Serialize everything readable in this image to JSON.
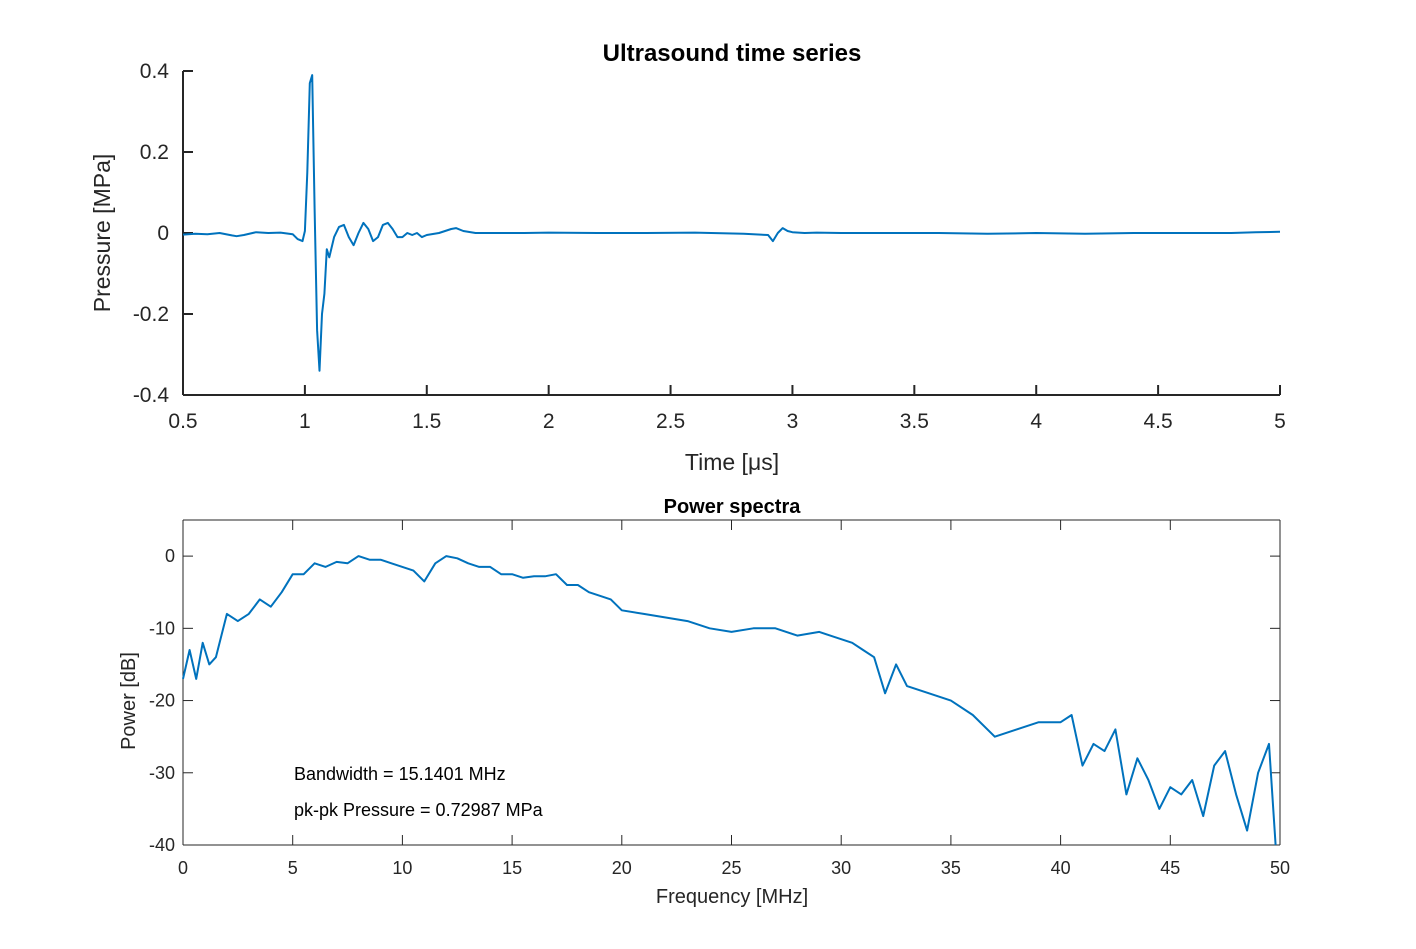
{
  "colors": {
    "line": "#0072BD",
    "axis": "#262626",
    "background": "#ffffff"
  },
  "chart_data": [
    {
      "type": "line",
      "title": "Ultrasound time series",
      "xlabel": "Time [μs]",
      "ylabel": "Pressure [MPa]",
      "xlim": [
        0.5,
        5
      ],
      "ylim": [
        -0.4,
        0.4
      ],
      "xticks": [
        0.5,
        1,
        1.5,
        2,
        2.5,
        3,
        3.5,
        4,
        4.5,
        5
      ],
      "yticks": [
        -0.4,
        -0.2,
        0,
        0.2,
        0.4
      ],
      "box": false,
      "grid": false,
      "series": [
        {
          "x": [
            0.5,
            0.55,
            0.6,
            0.65,
            0.7,
            0.72,
            0.75,
            0.8,
            0.85,
            0.9,
            0.95,
            0.97,
            0.99,
            1.0,
            1.01,
            1.02,
            1.03,
            1.04,
            1.05,
            1.06,
            1.07,
            1.08,
            1.09,
            1.1,
            1.12,
            1.14,
            1.16,
            1.18,
            1.2,
            1.22,
            1.24,
            1.26,
            1.28,
            1.3,
            1.32,
            1.34,
            1.36,
            1.38,
            1.4,
            1.42,
            1.44,
            1.46,
            1.48,
            1.5,
            1.55,
            1.6,
            1.62,
            1.65,
            1.7,
            1.8,
            1.9,
            2.0,
            2.2,
            2.4,
            2.6,
            2.8,
            2.9,
            2.92,
            2.94,
            2.96,
            2.98,
            3.0,
            3.05,
            3.1,
            3.2,
            3.4,
            3.6,
            3.8,
            4.0,
            4.2,
            4.4,
            4.6,
            4.8,
            4.9,
            5.0
          ],
          "y": [
            -0.004,
            -0.002,
            -0.003,
            0.0,
            -0.006,
            -0.008,
            -0.005,
            0.002,
            0.0,
            0.001,
            -0.003,
            -0.015,
            -0.02,
            0.005,
            0.15,
            0.37,
            0.39,
            0.06,
            -0.24,
            -0.34,
            -0.2,
            -0.15,
            -0.04,
            -0.06,
            -0.01,
            0.015,
            0.02,
            -0.01,
            -0.03,
            0.0,
            0.025,
            0.01,
            -0.02,
            -0.01,
            0.02,
            0.025,
            0.01,
            -0.01,
            -0.01,
            0.0,
            -0.005,
            0.0,
            -0.01,
            -0.005,
            0.0,
            0.01,
            0.012,
            0.005,
            0.0,
            0.0,
            0.0,
            0.001,
            0.0,
            0.0,
            0.001,
            -0.002,
            -0.005,
            -0.02,
            0.0,
            0.012,
            0.005,
            0.002,
            0.0,
            0.001,
            0.0,
            0.0,
            0.0,
            -0.002,
            0.0,
            -0.002,
            0.0,
            0.0,
            0.0,
            0.002,
            0.003
          ]
        }
      ]
    },
    {
      "type": "line",
      "title": "Power spectra",
      "xlabel": "Frequency [MHz]",
      "ylabel": "Power [dB]",
      "xlim": [
        0,
        50
      ],
      "ylim": [
        -40,
        5
      ],
      "xticks": [
        0,
        5,
        10,
        15,
        20,
        25,
        30,
        35,
        40,
        45,
        50
      ],
      "yticks": [
        -40,
        -30,
        -20,
        -10,
        0
      ],
      "box": true,
      "grid": false,
      "annotations": [
        "Bandwidth = 15.1401 MHz",
        "pk-pk Pressure = 0.72987 MPa"
      ],
      "series": [
        {
          "x": [
            0,
            0.3,
            0.6,
            0.9,
            1.2,
            1.5,
            2,
            2.5,
            3,
            3.5,
            4,
            4.5,
            5,
            5.5,
            6,
            6.5,
            7,
            7.5,
            8,
            8.5,
            9,
            9.5,
            10,
            10.5,
            11,
            11.5,
            12,
            12.5,
            13,
            13.5,
            14,
            14.5,
            15,
            15.5,
            16,
            16.5,
            17,
            17.5,
            18,
            18.5,
            19,
            19.5,
            20,
            21,
            22,
            23,
            24,
            25,
            26,
            27,
            28,
            29,
            29.5,
            30,
            30.5,
            31,
            31.5,
            32,
            32.5,
            33,
            34,
            35,
            36,
            37,
            38,
            39,
            40,
            40.5,
            41,
            41.5,
            42,
            42.5,
            43,
            43.5,
            44,
            44.5,
            45,
            45.5,
            46,
            46.5,
            47,
            47.5,
            48,
            48.5,
            49,
            49.5,
            49.8
          ],
          "y": [
            -17,
            -13,
            -17,
            -12,
            -15,
            -14,
            -8,
            -9,
            -8,
            -6,
            -7,
            -5,
            -2.5,
            -2.5,
            -1,
            -1.5,
            -0.8,
            -1,
            0,
            -0.5,
            -0.5,
            -1,
            -1.5,
            -2,
            -3.5,
            -1,
            0,
            -0.3,
            -1,
            -1.5,
            -1.5,
            -2.5,
            -2.5,
            -3,
            -2.8,
            -2.8,
            -2.5,
            -4,
            -4,
            -5,
            -5.5,
            -6,
            -7.5,
            -8,
            -8.5,
            -9,
            -10,
            -10.5,
            -10,
            -10,
            -11,
            -10.5,
            -11,
            -11.5,
            -12,
            -13,
            -14,
            -19,
            -15,
            -18,
            -19,
            -20,
            -22,
            -25,
            -24,
            -23,
            -23,
            -22,
            -29,
            -26,
            -27,
            -24,
            -33,
            -28,
            -31,
            -35,
            -32,
            -33,
            -31,
            -36,
            -29,
            -27,
            -33,
            -38,
            -30,
            -26,
            -40
          ]
        }
      ]
    }
  ]
}
